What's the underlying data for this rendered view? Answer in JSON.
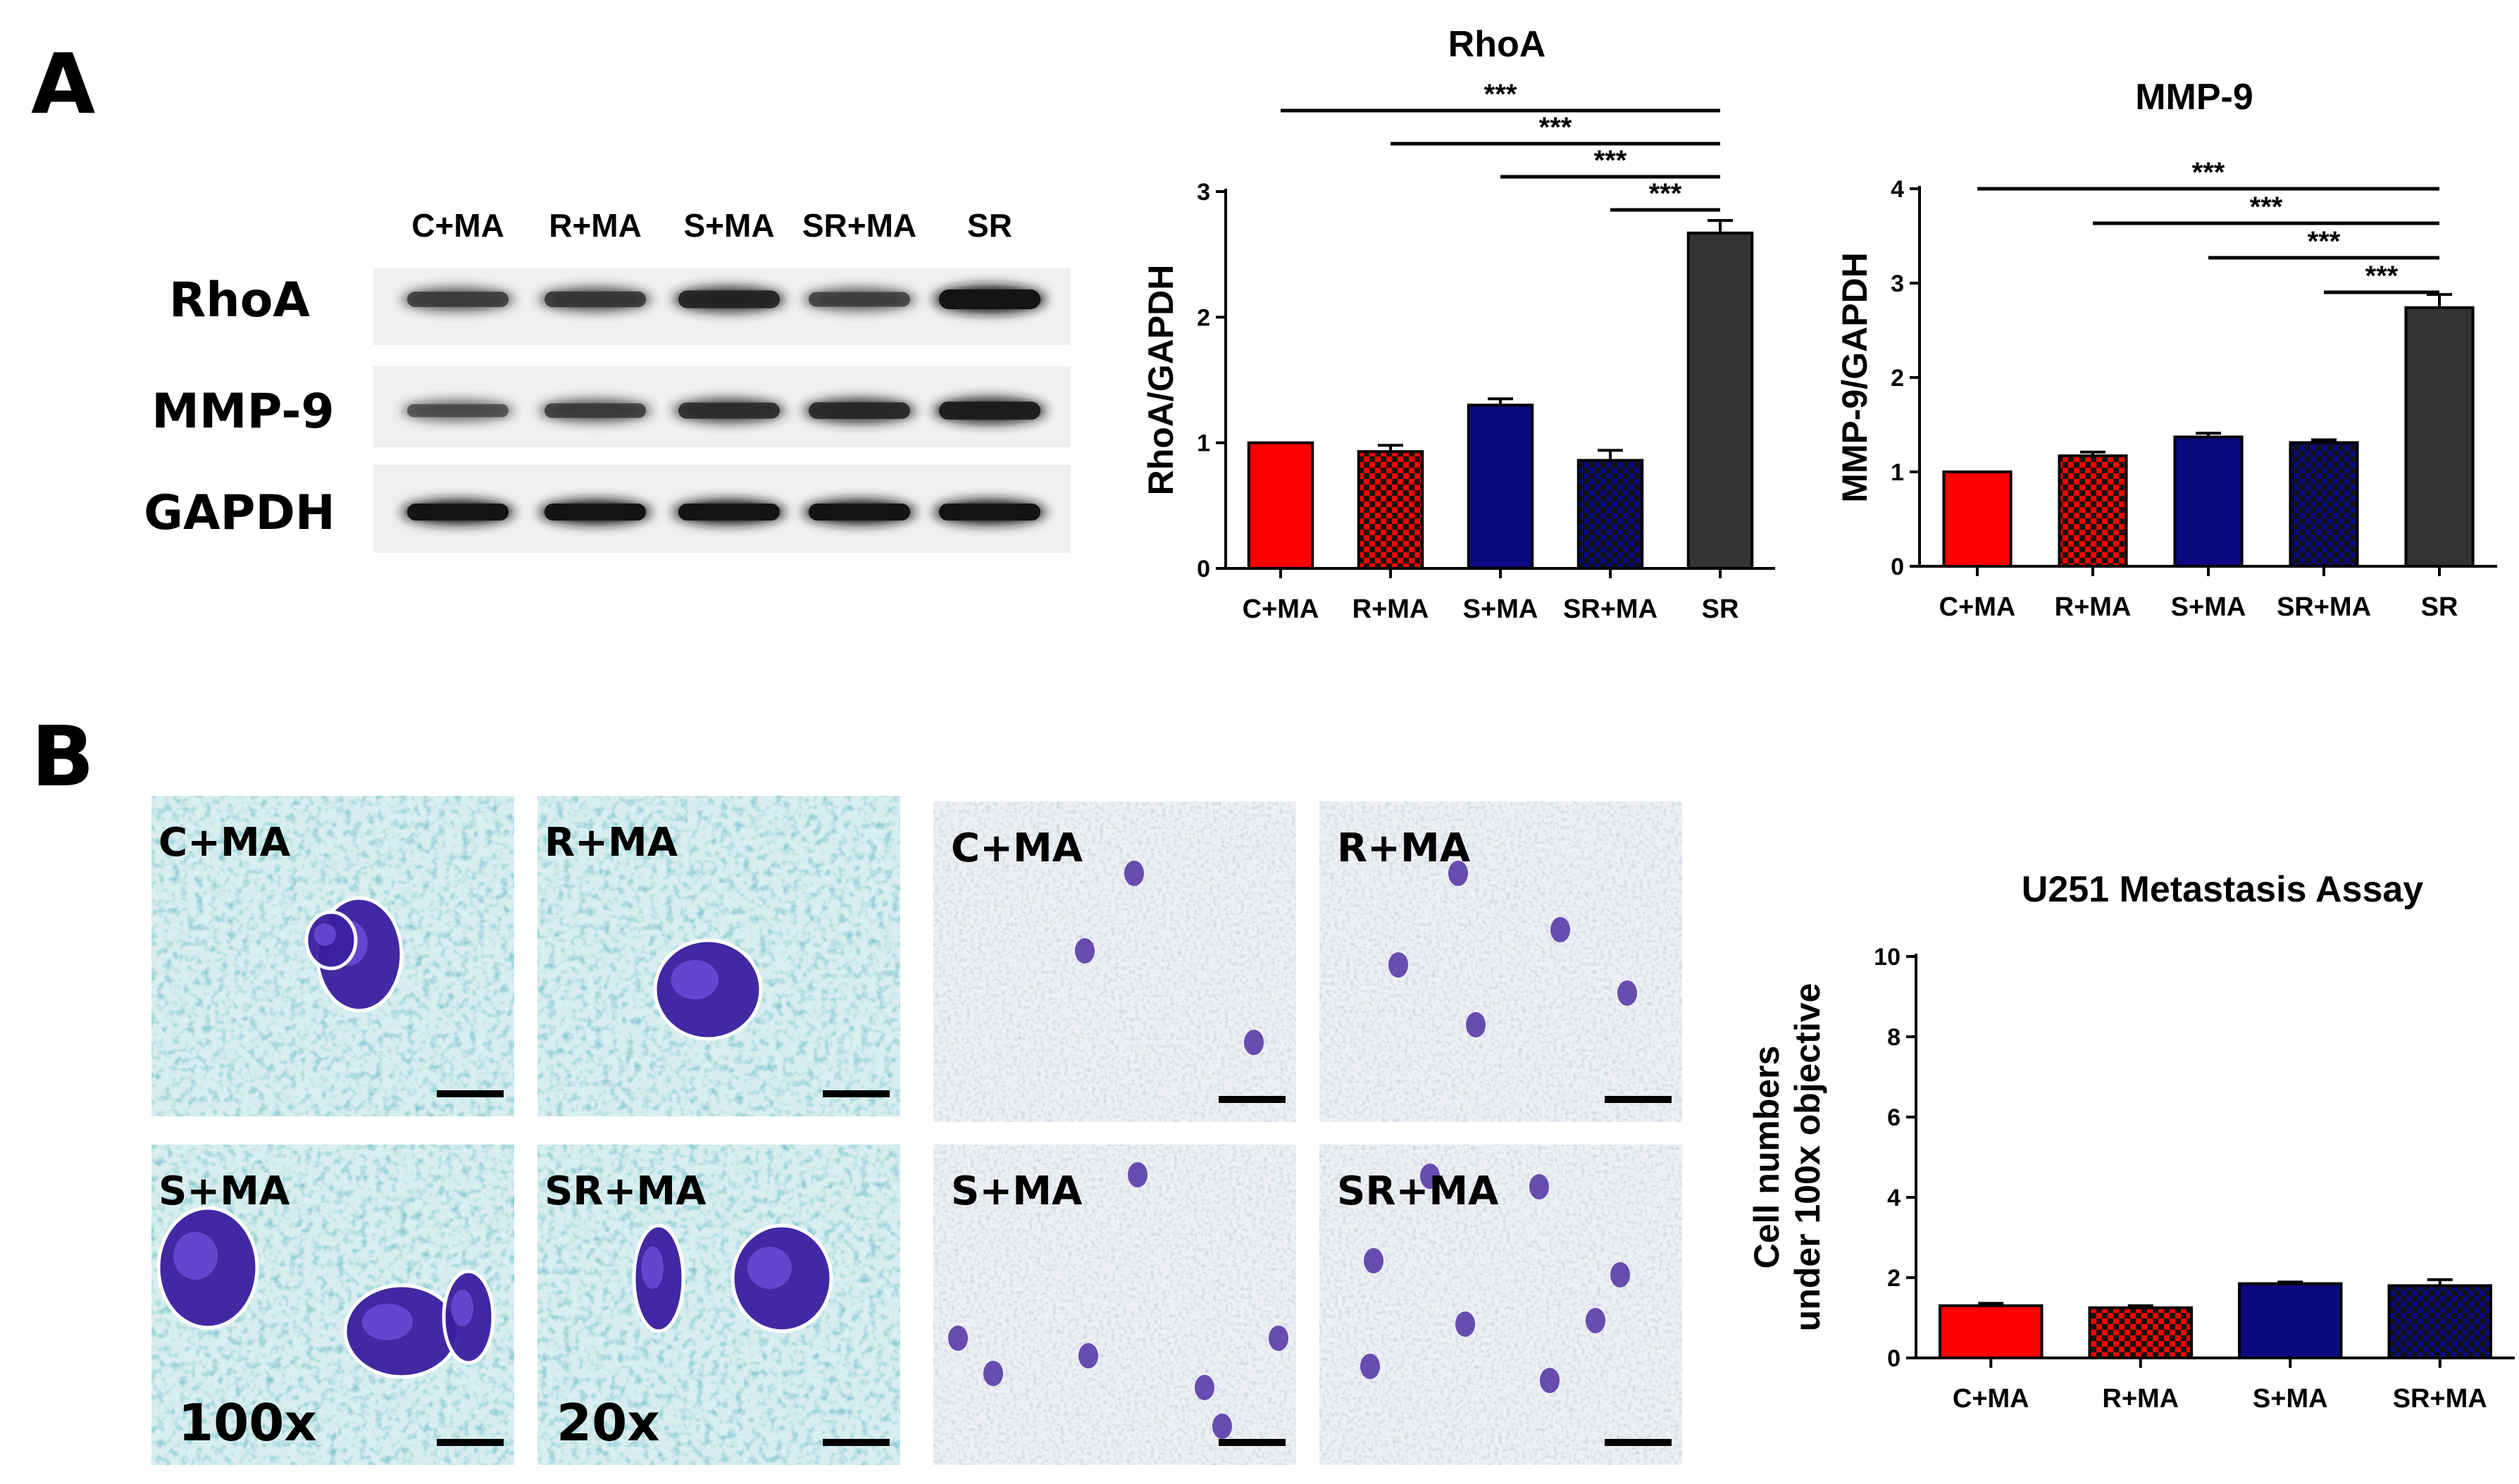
{
  "panel_labels": [
    "A",
    "B"
  ],
  "western_blot": {
    "lanes": [
      "C+MA",
      "R+MA",
      "S+MA",
      "SR+MA",
      "SR"
    ],
    "proteins": [
      "RhoA",
      "MMP-9",
      "GAPDH"
    ],
    "band_intensity": {
      "RhoA": [
        0.55,
        0.6,
        0.8,
        0.5,
        1.0
      ],
      "MMP-9": [
        0.4,
        0.55,
        0.7,
        0.75,
        0.9
      ],
      "GAPDH": [
        1.0,
        1.0,
        1.0,
        1.0,
        1.0
      ]
    }
  },
  "micrographs": {
    "magnification_labels": [
      "100x",
      "20x"
    ],
    "tiles": [
      {
        "label": "C+MA",
        "style": "high"
      },
      {
        "label": "R+MA",
        "style": "high"
      },
      {
        "label": "C+MA",
        "style": "low"
      },
      {
        "label": "R+MA",
        "style": "low"
      },
      {
        "label": "S+MA",
        "style": "high"
      },
      {
        "label": "SR+MA",
        "style": "high"
      },
      {
        "label": "S+MA",
        "style": "low"
      },
      {
        "label": "SR+MA",
        "style": "low"
      }
    ]
  },
  "colors": {
    "C+MA": "#ff0000",
    "R+MA": "#ff0000",
    "S+MA": "#0a0a80",
    "SR+MA": "#0a0a80",
    "SR": "#333333",
    "checker_dark": "#111111"
  },
  "chart_data": [
    {
      "type": "bar",
      "title": "RhoA",
      "ylabel": "RhoA/GAPDH",
      "xlabel": "",
      "categories": [
        "C+MA",
        "R+MA",
        "S+MA",
        "SR+MA",
        "SR"
      ],
      "values": [
        1.0,
        0.93,
        1.3,
        0.86,
        2.67
      ],
      "errors": [
        0.0,
        0.05,
        0.05,
        0.08,
        0.1
      ],
      "patterns": [
        "solid",
        "checker",
        "solid",
        "checker",
        "solid"
      ],
      "ylim": [
        0,
        3
      ],
      "yticks": [
        0,
        1,
        2,
        3
      ],
      "significance": [
        {
          "from": 0,
          "to": 4,
          "label": "***"
        },
        {
          "from": 1,
          "to": 4,
          "label": "***"
        },
        {
          "from": 2,
          "to": 4,
          "label": "***"
        },
        {
          "from": 3,
          "to": 4,
          "label": "***"
        }
      ]
    },
    {
      "type": "bar",
      "title": "MMP-9",
      "ylabel": "MMP-9/GAPDH",
      "xlabel": "",
      "categories": [
        "C+MA",
        "R+MA",
        "S+MA",
        "SR+MA",
        "SR"
      ],
      "values": [
        1.0,
        1.17,
        1.37,
        1.31,
        2.74
      ],
      "errors": [
        0.0,
        0.04,
        0.04,
        0.03,
        0.14
      ],
      "patterns": [
        "solid",
        "checker",
        "solid",
        "checker",
        "solid"
      ],
      "ylim": [
        0,
        4
      ],
      "yticks": [
        0,
        1,
        2,
        3,
        4
      ],
      "significance": [
        {
          "from": 0,
          "to": 4,
          "label": "***"
        },
        {
          "from": 1,
          "to": 4,
          "label": "***"
        },
        {
          "from": 2,
          "to": 4,
          "label": "***"
        },
        {
          "from": 3,
          "to": 4,
          "label": "***"
        }
      ]
    },
    {
      "type": "bar",
      "title": "U251 Metastasis Assay",
      "ylabel": "Cell numbers under 100x objective",
      "ylabel_lines": [
        "Cell numbers",
        "under 100x objective"
      ],
      "xlabel": "",
      "categories": [
        "C+MA",
        "R+MA",
        "S+MA",
        "SR+MA"
      ],
      "values": [
        1.3,
        1.25,
        1.85,
        1.8
      ],
      "errors": [
        0.06,
        0.05,
        0.04,
        0.15
      ],
      "patterns": [
        "solid",
        "checker",
        "solid",
        "checker"
      ],
      "ylim": [
        0,
        10
      ],
      "yticks": [
        0,
        2,
        4,
        6,
        8,
        10
      ],
      "significance": []
    }
  ]
}
